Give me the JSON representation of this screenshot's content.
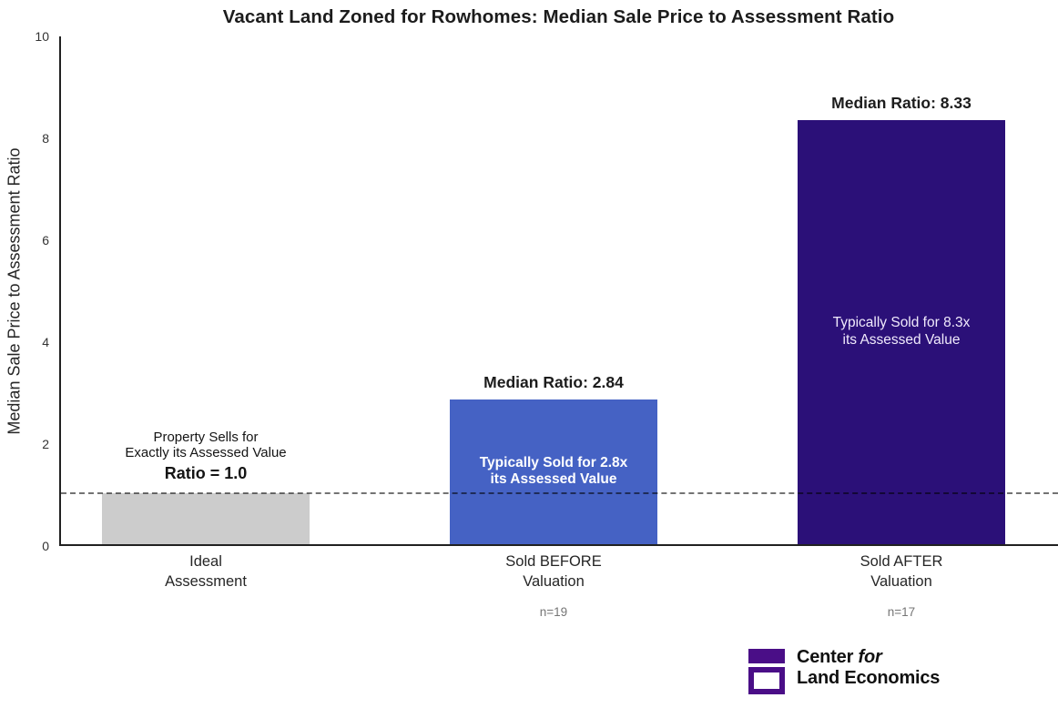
{
  "title": "Vacant Land Zoned for Rowhomes: Median Sale Price to Assessment Ratio",
  "chart_data": {
    "type": "bar",
    "title": "Vacant Land Zoned for Rowhomes: Median Sale Price to Assessment Ratio",
    "xlabel": "",
    "ylabel": "Median Sale Price to Assessment Ratio",
    "ylim": [
      0,
      10
    ],
    "yticks": [
      0,
      2,
      4,
      6,
      8,
      10
    ],
    "grid": false,
    "legend": "none",
    "categories": [
      "Ideal Assessment",
      "Sold BEFORE Valuation",
      "Sold AFTER Valuation"
    ],
    "values": [
      1.0,
      2.84,
      8.33
    ],
    "colors": [
      "#cccccc",
      "#4562c4",
      "#2b1078"
    ],
    "sample_sizes": [
      "",
      "n=19",
      "n=17"
    ],
    "reference_line_y": 1.0
  },
  "y_axis": {
    "label": "Median Sale Price to Assessment Ratio"
  },
  "bars": [
    {
      "tick_line1": "Ideal",
      "tick_line2": "Assessment",
      "note_line1": "Property Sells for",
      "note_line2": "Exactly its Assessed Value",
      "note_bold": "Ratio = 1.0",
      "n": ""
    },
    {
      "tick_line1": "Sold BEFORE",
      "tick_line2": "Valuation",
      "median_label": "Median Ratio: 2.84",
      "inside_line1": "Typically Sold for 2.8x",
      "inside_line2": "its Assessed Value",
      "n": "n=19"
    },
    {
      "tick_line1": "Sold AFTER",
      "tick_line2": "Valuation",
      "median_label": "Median Ratio: 8.33",
      "inside_line1": "Typically Sold for 8.3x",
      "inside_line2": "its Assessed Value",
      "n": "n=17"
    }
  ],
  "logo": {
    "line1_text": "Center ",
    "line1_italic": "for",
    "line2_text": "Land Economics",
    "color": "#4a0e87"
  }
}
